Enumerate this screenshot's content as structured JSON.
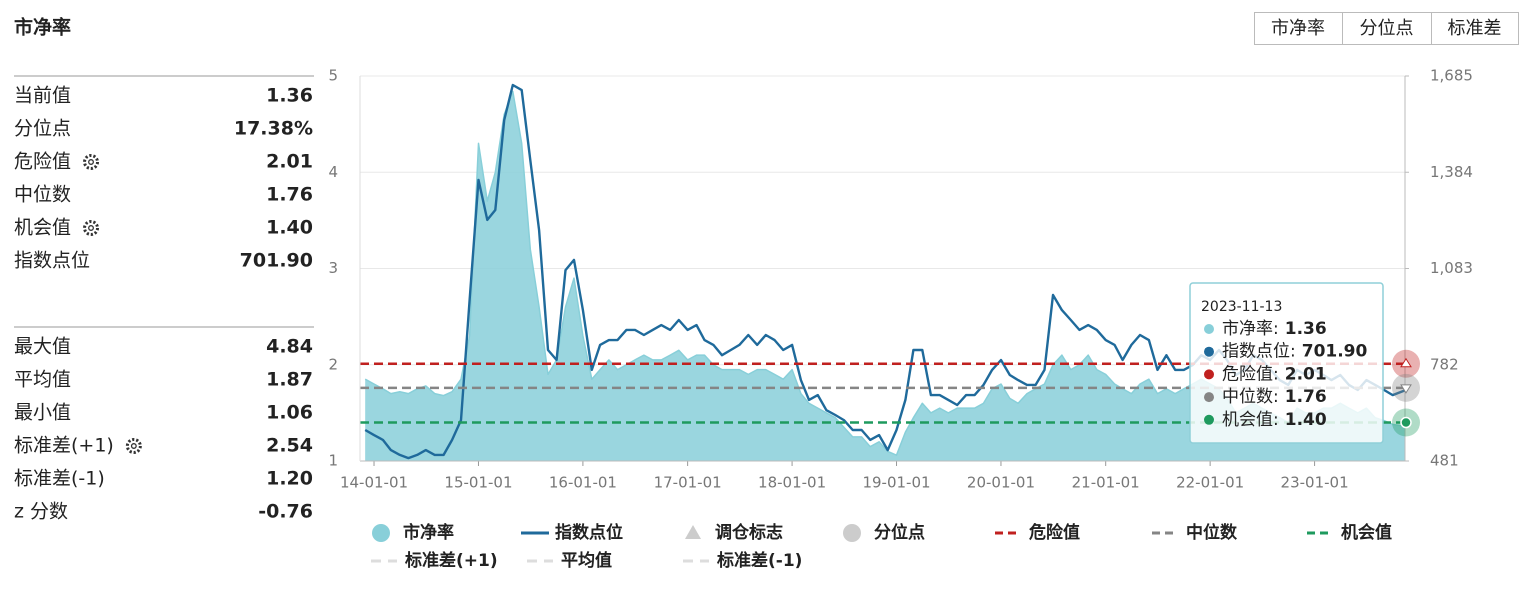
{
  "header": {
    "title": "市净率",
    "tabs": [
      "市净率",
      "分位点",
      "标准差"
    ]
  },
  "panel": {
    "groups": [
      {
        "rows": [
          {
            "label": "当前值",
            "value": "1.36"
          },
          {
            "label": "分位点",
            "value": "17.38%"
          },
          {
            "label": "危险值",
            "value": "2.01",
            "gear": true
          },
          {
            "label": "中位数",
            "value": "1.76"
          },
          {
            "label": "机会值",
            "value": "1.40",
            "gear": true
          },
          {
            "label": "指数点位",
            "value": "701.90"
          }
        ]
      },
      {
        "rows": [
          {
            "label": "最大值",
            "value": "4.84"
          },
          {
            "label": "平均值",
            "value": "1.87"
          },
          {
            "label": "最小值",
            "value": "1.06"
          },
          {
            "label": "标准差(+1)",
            "value": "2.54",
            "gear": true
          },
          {
            "label": "标准差(-1)",
            "value": "1.20"
          },
          {
            "label": "z 分数",
            "value": "-0.76"
          }
        ]
      }
    ]
  },
  "chart_data": {
    "type": "line",
    "x": [
      "13-12-01",
      "14-01-01",
      "14-02-01",
      "14-03-01",
      "14-04-01",
      "14-05-01",
      "14-06-01",
      "14-07-01",
      "14-08-01",
      "14-09-01",
      "14-10-01",
      "14-11-01",
      "14-12-01",
      "15-01-01",
      "15-02-01",
      "15-03-01",
      "15-04-01",
      "15-05-01",
      "15-06-01",
      "15-07-01",
      "15-08-01",
      "15-09-01",
      "15-10-01",
      "15-11-01",
      "15-12-01",
      "16-01-01",
      "16-02-01",
      "16-03-01",
      "16-04-01",
      "16-05-01",
      "16-06-01",
      "16-07-01",
      "16-08-01",
      "16-09-01",
      "16-10-01",
      "16-11-01",
      "16-12-01",
      "17-01-01",
      "17-02-01",
      "17-03-01",
      "17-04-01",
      "17-05-01",
      "17-06-01",
      "17-07-01",
      "17-08-01",
      "17-09-01",
      "17-10-01",
      "17-11-01",
      "17-12-01",
      "18-01-01",
      "18-02-01",
      "18-03-01",
      "18-04-01",
      "18-05-01",
      "18-06-01",
      "18-07-01",
      "18-08-01",
      "18-09-01",
      "18-10-01",
      "18-11-01",
      "18-12-01",
      "19-01-01",
      "19-02-01",
      "19-03-01",
      "19-04-01",
      "19-05-01",
      "19-06-01",
      "19-07-01",
      "19-08-01",
      "19-09-01",
      "19-10-01",
      "19-11-01",
      "19-12-01",
      "20-01-01",
      "20-02-01",
      "20-03-01",
      "20-04-01",
      "20-05-01",
      "20-06-01",
      "20-07-01",
      "20-08-01",
      "20-09-01",
      "20-10-01",
      "20-11-01",
      "20-12-01",
      "21-01-01",
      "21-02-01",
      "21-03-01",
      "21-04-01",
      "21-05-01",
      "21-06-01",
      "21-07-01",
      "21-08-01",
      "21-09-01",
      "21-10-01",
      "21-11-01",
      "21-12-01",
      "22-01-01",
      "22-02-01",
      "22-03-01",
      "22-04-01",
      "22-05-01",
      "22-06-01",
      "22-07-01",
      "22-08-01",
      "22-09-01",
      "22-10-01",
      "22-11-01",
      "22-12-01",
      "23-01-01",
      "23-02-01",
      "23-03-01",
      "23-04-01",
      "23-05-01",
      "23-06-01",
      "23-07-01",
      "23-08-01",
      "23-09-01",
      "23-10-01",
      "23-11-13"
    ],
    "xlim": [
      "13-11-13",
      "23-11-13"
    ],
    "xticks": [
      "14-01-01",
      "15-01-01",
      "16-01-01",
      "17-01-01",
      "18-01-01",
      "19-01-01",
      "20-01-01",
      "21-01-01",
      "22-01-01",
      "23-01-01"
    ],
    "ylim": [
      1,
      5
    ],
    "yticks": [
      1,
      2,
      3,
      4,
      5
    ],
    "y2lim": [
      481,
      1685
    ],
    "y2ticks": [
      481,
      782,
      {
        "value": 1083,
        "label": "1,083"
      },
      {
        "value": 1384,
        "label": "1,384"
      },
      {
        "value": 1685,
        "label": "1,685"
      }
    ],
    "grid": true,
    "series": [
      {
        "name": "市净率",
        "color": "#88cfd9",
        "symbol": "circle",
        "area": true,
        "values": [
          1.85,
          1.8,
          1.75,
          1.7,
          1.72,
          1.7,
          1.75,
          1.78,
          1.7,
          1.68,
          1.72,
          1.85,
          2.3,
          4.3,
          3.7,
          4.0,
          4.6,
          4.84,
          4.3,
          3.2,
          2.6,
          1.9,
          2.05,
          2.6,
          2.9,
          2.3,
          1.85,
          1.95,
          2.05,
          1.95,
          2.0,
          2.05,
          2.1,
          2.05,
          2.05,
          2.1,
          2.15,
          2.05,
          2.1,
          2.1,
          2.0,
          1.95,
          1.95,
          1.95,
          1.9,
          1.95,
          1.95,
          1.9,
          1.85,
          1.95,
          1.7,
          1.6,
          1.55,
          1.5,
          1.45,
          1.35,
          1.25,
          1.25,
          1.15,
          1.2,
          1.1,
          1.06,
          1.3,
          1.45,
          1.6,
          1.5,
          1.55,
          1.5,
          1.55,
          1.55,
          1.55,
          1.6,
          1.75,
          1.8,
          1.65,
          1.6,
          1.7,
          1.75,
          1.8,
          2.0,
          2.1,
          1.95,
          2.0,
          2.1,
          1.95,
          1.9,
          1.8,
          1.75,
          1.7,
          1.8,
          1.85,
          1.7,
          1.75,
          1.7,
          1.75,
          1.8,
          1.85,
          1.8,
          1.75,
          1.65,
          1.5,
          1.55,
          1.6,
          1.55,
          1.5,
          1.45,
          1.4,
          1.55,
          1.5,
          1.5,
          1.55,
          1.55,
          1.6,
          1.55,
          1.5,
          1.55,
          1.45,
          1.42,
          1.38,
          1.36
        ]
      },
      {
        "name": "指数点位",
        "color": "#1f6a9b",
        "symbol": "line",
        "axis": "y2",
        "values": [
          578,
          562,
          547,
          515,
          500,
          490,
          500,
          515,
          500,
          500,
          547,
          609,
          984,
          1360,
          1235,
          1266,
          1547,
          1657,
          1641,
          1422,
          1203,
          828,
          797,
          1078,
          1110,
          953,
          766,
          844,
          859,
          859,
          891,
          891,
          875,
          891,
          906,
          891,
          922,
          891,
          906,
          859,
          844,
          812,
          828,
          844,
          875,
          844,
          875,
          859,
          828,
          844,
          734,
          672,
          687,
          640,
          625,
          609,
          578,
          578,
          547,
          562,
          515,
          578,
          672,
          828,
          828,
          687,
          687,
          672,
          656,
          687,
          687,
          719,
          766,
          797,
          750,
          734,
          719,
          719,
          766,
          1000,
          953,
          922,
          891,
          906,
          891,
          859,
          844,
          797,
          844,
          875,
          859,
          766,
          812,
          766,
          766,
          781,
          812,
          797,
          828,
          797,
          750,
          766,
          812,
          797,
          766,
          734,
          719,
          766,
          750,
          766,
          750,
          734,
          750,
          719,
          703,
          734,
          719,
          703,
          687,
          701.9
        ]
      }
    ],
    "reference_lines": [
      {
        "name": "危险值",
        "value": 2.01,
        "color": "#c0201f",
        "marker": "up"
      },
      {
        "name": "中位数",
        "value": 1.76,
        "color": "#858585",
        "marker": "down"
      },
      {
        "name": "机会值",
        "value": 1.4,
        "color": "#1e9a5e",
        "marker": "dot"
      }
    ],
    "inactive_legend": [
      {
        "name": "调仓标志",
        "symbol": "triangle"
      },
      {
        "name": "分位点",
        "symbol": "circle"
      },
      {
        "name": "标准差(+1)",
        "symbol": "dash"
      },
      {
        "name": "平均值",
        "symbol": "dash"
      },
      {
        "name": "标准差(-1)",
        "symbol": "dash"
      }
    ],
    "tooltip": {
      "date": "2023-11-13",
      "items": [
        {
          "label": "市净率:",
          "value": "1.36",
          "color": "#88cfd9"
        },
        {
          "label": "指数点位:",
          "value": "701.90",
          "color": "#1f6a9b"
        },
        {
          "label": "危险值:",
          "value": "2.01",
          "color": "#c0201f"
        },
        {
          "label": "中位数:",
          "value": "1.76",
          "color": "#858585"
        },
        {
          "label": "机会值:",
          "value": "1.40",
          "color": "#1e9a5e"
        }
      ]
    }
  }
}
